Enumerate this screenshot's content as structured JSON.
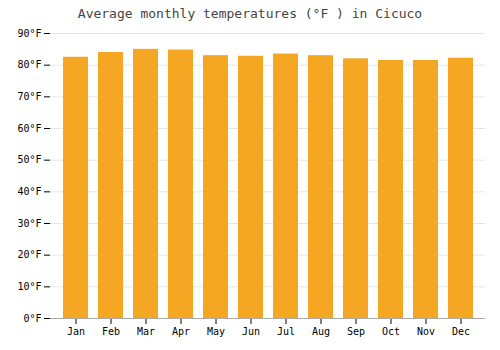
{
  "chart_data": {
    "type": "bar",
    "title": "Average monthly temperatures (°F ) in Cicuco",
    "categories": [
      "Jan",
      "Feb",
      "Mar",
      "Apr",
      "May",
      "Jun",
      "Jul",
      "Aug",
      "Sep",
      "Oct",
      "Nov",
      "Dec"
    ],
    "values": [
      82.5,
      84.0,
      85.0,
      84.8,
      83.0,
      82.8,
      83.5,
      83.0,
      82.0,
      81.5,
      81.5,
      82.2
    ],
    "color": "#F5A623",
    "ylim": [
      0,
      90
    ],
    "yticks": [
      {
        "value": 0,
        "label": "0°F"
      },
      {
        "value": 10,
        "label": "10°F"
      },
      {
        "value": 20,
        "label": "20°F"
      },
      {
        "value": 30,
        "label": "30°F"
      },
      {
        "value": 40,
        "label": "40°F"
      },
      {
        "value": 50,
        "label": "50°F"
      },
      {
        "value": 60,
        "label": "60°F"
      },
      {
        "value": 70,
        "label": "70°F"
      },
      {
        "value": 80,
        "label": "80°F"
      },
      {
        "value": 90,
        "label": "90°F"
      }
    ],
    "grid": true
  }
}
